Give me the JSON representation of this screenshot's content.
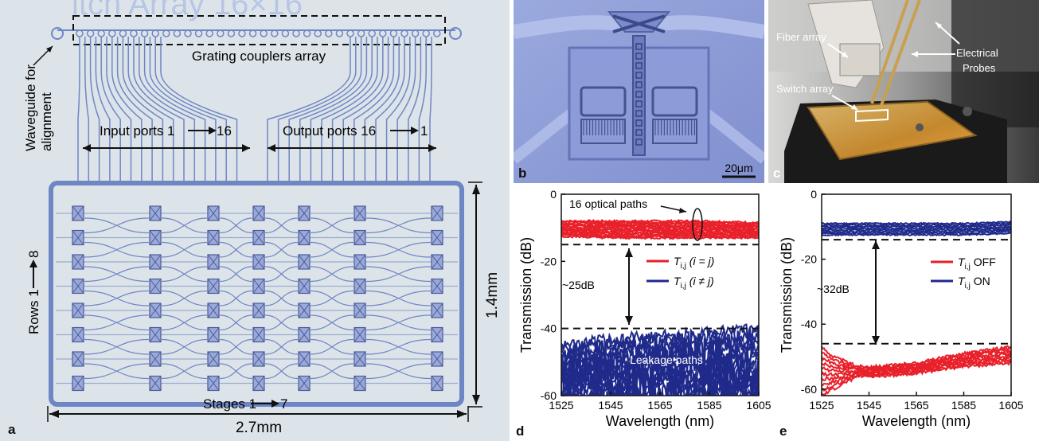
{
  "panel_a": {
    "letter": "a",
    "header_text": "itch Array 16×16",
    "grating_label": "Grating couplers array",
    "alignment_label_1": "Waveguide for",
    "alignment_label_2": "alignment",
    "input_ports_label": "Input ports 1",
    "input_ports_end": "16",
    "output_ports_label": "Output ports 16",
    "output_ports_end": "1",
    "rows_label": "Rows 1",
    "rows_end": "8",
    "stages_label": "Stages 1",
    "stages_end": "7",
    "height_label": "1.4mm",
    "width_label": "2.7mm"
  },
  "panel_b": {
    "letter": "b",
    "scale_label": "20μm"
  },
  "panel_c": {
    "letter": "c",
    "fiber_label": "Fiber array",
    "probe_label_1": "Electrical",
    "probe_label_2": "Probes",
    "switch_label": "Switch array"
  },
  "panel_d": {
    "letter": "d",
    "annot_paths": "16 optical paths",
    "annot_gap": "~25dB",
    "annot_leak": "Leakage paths",
    "legend_1_main": "T",
    "legend_1_sub": "i,j",
    "legend_1_cond": "(i = j)",
    "legend_2_main": "T",
    "legend_2_sub": "i,j",
    "legend_2_cond": "(i ≠ j)"
  },
  "panel_e": {
    "letter": "e",
    "annot_gap": "~32dB",
    "legend_1_main": "T",
    "legend_1_sub": "i,j",
    "legend_1_cond": "OFF",
    "legend_2_main": "T",
    "legend_2_sub": "i,j",
    "legend_2_cond": "ON"
  },
  "colors": {
    "red": "#e8202a",
    "blue": "#1f2a8a",
    "waveguide": "#6f86c4"
  },
  "chart_data": [
    {
      "type": "line",
      "xlabel": "Wavelength (nm)",
      "ylabel": "Transmission (dB)",
      "xlim": [
        1525,
        1605
      ],
      "ylim": [
        -60,
        0
      ],
      "xticks": [
        1525,
        1545,
        1565,
        1585,
        1605
      ],
      "yticks": [
        0,
        -20,
        -40,
        -60
      ],
      "dashed_lines": [
        -15,
        -40
      ],
      "series": [
        {
          "name": "Ti,j (i = j)",
          "color": "#e8202a",
          "x": [
            1525,
            1545,
            1565,
            1585,
            1605
          ],
          "y_band_top": [
            -8,
            -8,
            -8,
            -8,
            -8.5
          ],
          "y_band_bottom": [
            -12.5,
            -13,
            -13,
            -13,
            -13
          ]
        },
        {
          "name": "Ti,j (i ≠ j)",
          "color": "#1f2a8a",
          "x": [
            1525,
            1545,
            1565,
            1585,
            1605
          ],
          "y_band_top": [
            -45,
            -43,
            -42,
            -41,
            -40
          ],
          "y_band_bottom": [
            -60,
            -60,
            -60,
            -60,
            -60
          ]
        }
      ]
    },
    {
      "type": "line",
      "xlabel": "Wavelength (nm)",
      "ylabel": "Transmission (dB)",
      "xlim": [
        1525,
        1605
      ],
      "ylim": [
        -62,
        0
      ],
      "xticks": [
        1525,
        1545,
        1565,
        1585,
        1605
      ],
      "yticks": [
        0,
        -20,
        -40,
        -60
      ],
      "dashed_lines": [
        -14,
        -46
      ],
      "series": [
        {
          "name": "Ti,j ON",
          "color": "#1f2a8a",
          "x": [
            1525,
            1545,
            1565,
            1585,
            1605
          ],
          "y_band_top": [
            -9,
            -9,
            -9,
            -9,
            -8.5
          ],
          "y_band_bottom": [
            -12.5,
            -12.5,
            -12.5,
            -12.5,
            -12
          ]
        },
        {
          "name": "Ti,j OFF",
          "color": "#e8202a",
          "x": [
            1525,
            1530,
            1540,
            1550,
            1565,
            1585,
            1605
          ],
          "y_band_top": [
            -47,
            -50,
            -53,
            -53,
            -52,
            -49,
            -47
          ],
          "y_band_bottom": [
            -62,
            -60,
            -56,
            -56,
            -55,
            -53,
            -52
          ]
        }
      ]
    }
  ]
}
